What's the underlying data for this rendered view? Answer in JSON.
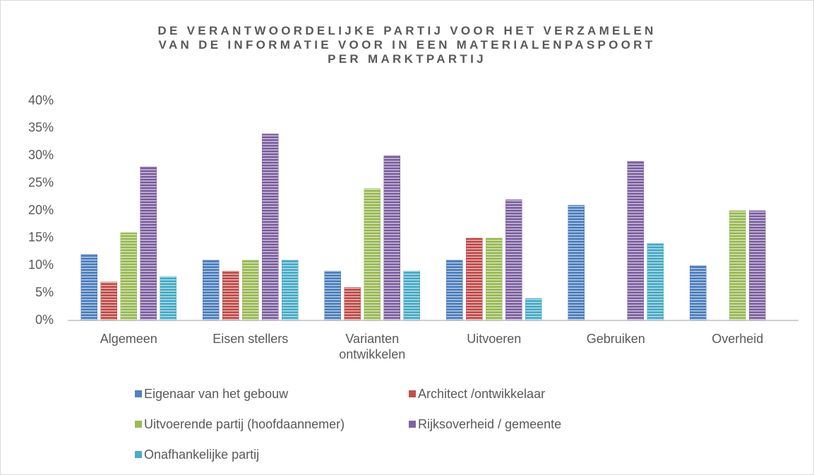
{
  "chart_data": {
    "type": "bar",
    "title": [
      "DE VERANTWOORDELIJKE PARTIJ VOOR HET VERZAMELEN",
      "VAN DE INFORMATIE VOOR IN EEN MATERIALENPASPOORT",
      "PER MARKTPARTIJ"
    ],
    "categories": [
      "Algemeen",
      "Eisen stellers",
      "Varianten ontwikkelen",
      "Uitvoeren",
      "Gebruiken",
      "Overheid"
    ],
    "series": [
      {
        "name": "Eigenaar van het gebouw",
        "color": "#4f81bd",
        "values": [
          12,
          11,
          9,
          11,
          21,
          10
        ]
      },
      {
        "name": "Architect /ontwikkelaar",
        "color": "#c0504d",
        "values": [
          7,
          9,
          6,
          15,
          0,
          0
        ]
      },
      {
        "name": "Uitvoerende partij (hoofdaannemer)",
        "color": "#9bbb59",
        "values": [
          16,
          11,
          24,
          15,
          0,
          20
        ]
      },
      {
        "name": "Rijksoverheid / gemeente",
        "color": "#8064a2",
        "values": [
          28,
          34,
          30,
          22,
          29,
          20
        ]
      },
      {
        "name": "Onafhankelijke partij",
        "color": "#4bacc6",
        "values": [
          8,
          11,
          9,
          4,
          14,
          0
        ]
      }
    ],
    "ylim": [
      0,
      40
    ],
    "yticks": [
      {
        "value": 0,
        "label": "0%"
      },
      {
        "value": 5,
        "label": "5%"
      },
      {
        "value": 10,
        "label": "10%"
      },
      {
        "value": 15,
        "label": "15%"
      },
      {
        "value": 20,
        "label": "20%"
      },
      {
        "value": 25,
        "label": "25%"
      },
      {
        "value": 30,
        "label": "30%"
      },
      {
        "value": 35,
        "label": "35%"
      },
      {
        "value": 40,
        "label": "40%"
      }
    ],
    "grid": false,
    "legend": "bottom"
  }
}
